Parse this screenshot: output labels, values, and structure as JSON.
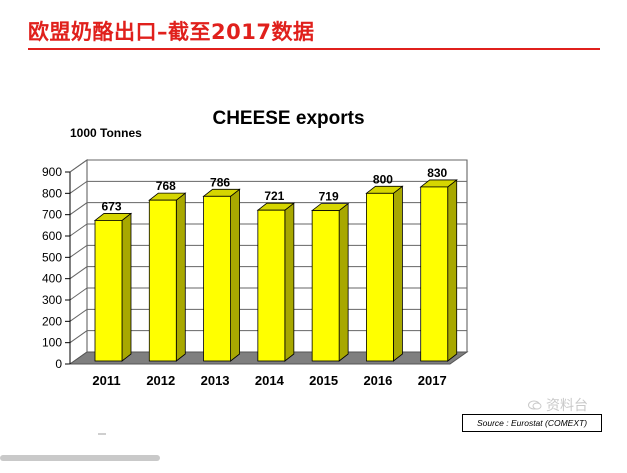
{
  "slide": {
    "title": "欧盟奶酪出口–截至2017数据",
    "accent_color": "#e0201c"
  },
  "chart_data": {
    "type": "bar",
    "title": "CHEESE exports",
    "ylabel": "1000 Tonnes",
    "xlabel": "",
    "categories": [
      "2011",
      "2012",
      "2013",
      "2014",
      "2015",
      "2016",
      "2017"
    ],
    "values": [
      673,
      768,
      786,
      721,
      719,
      800,
      830
    ],
    "data_labels": [
      "673",
      "768",
      "786",
      "721",
      "719",
      "800",
      "830"
    ],
    "ylim": [
      0,
      900
    ],
    "yticks": [
      "0",
      "100",
      "200",
      "300",
      "400",
      "500",
      "600",
      "700",
      "800",
      "900"
    ],
    "grid": true,
    "style": "3d",
    "bar_color": "#ffff00",
    "bar_side_color": "#a8a800",
    "bar_top_color": "#d6d600",
    "floor_color": "#7f7f7f",
    "wall_color": "#ffffff"
  },
  "source": "Source : Eurostat (COMEXT)",
  "watermark": "资料台",
  "watermark_icon": "chat-bubble-icon"
}
